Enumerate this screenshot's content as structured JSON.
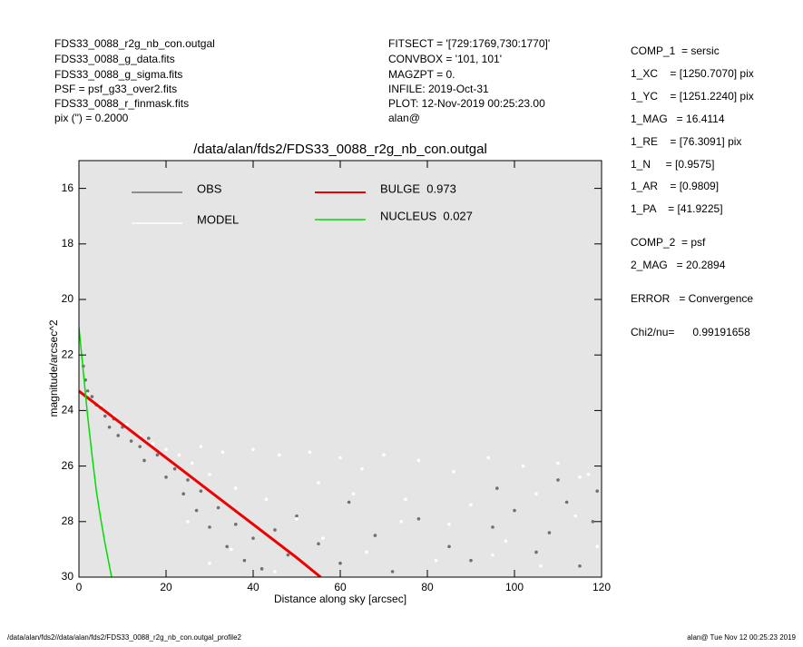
{
  "header": {
    "left": [
      "FDS33_0088_r2g_nb_con.outgal",
      "FDS33_0088_g_data.fits",
      "FDS33_0088_g_sigma.fits",
      "PSF     = psf_g33_over2.fits",
      "FDS33_0088_r_finmask.fits",
      "pix (\") =  0.2000"
    ],
    "middle": [
      "FITSECT = '[729:1769,730:1770]'",
      "CONVBOX = '101, 101'",
      "MAGZPT  =              0.",
      "INFILE: 2019-Oct-31",
      "PLOT: 12-Nov-2019 00:25:23.00",
      "alan@"
    ],
    "right": [
      "COMP_1  = sersic",
      "1_XC    = [1250.7070] pix",
      "1_YC    = [1251.2240] pix",
      "1_MAG   = 16.4114",
      "1_RE    = [76.3091] pix",
      "1_N     = [0.9575]",
      "1_AR    = [0.9809]",
      "1_PA    = [41.9225]",
      "COMP_2  = psf",
      "2_MAG   = 20.2894",
      "ERROR   = Convergence",
      "Chi2/nu=      0.99191658"
    ]
  },
  "footer": {
    "left": "/data/alan/fds2//data/alan/fds2/FDS33_0088_r2g_nb_con.outgal_profile2",
    "right": "alan@  Tue Nov 12 00:25:23 2019"
  },
  "chart_data": {
    "type": "scatter",
    "title": "/data/alan/fds2/FDS33_0088_r2g_nb_con.outgal",
    "x_label": "Distance along sky [arcsec]",
    "y_label": "magnitude/arcsec^2",
    "xlim": [
      0,
      120
    ],
    "xticks": [
      0,
      20,
      40,
      60,
      80,
      100,
      120
    ],
    "ylim": [
      30,
      15
    ],
    "yticks": [
      16,
      18,
      20,
      22,
      24,
      26,
      28,
      30
    ],
    "background": "#e5e5e5",
    "series": [
      {
        "name": "OBS",
        "style": "points",
        "color": "#707070",
        "x": [
          1,
          1.5,
          2,
          3,
          4,
          5,
          6,
          7,
          8,
          9,
          10,
          12,
          14,
          15,
          16,
          18,
          20,
          22,
          24,
          25,
          27,
          28,
          30,
          32,
          34,
          36,
          38,
          40,
          42,
          45,
          48,
          50,
          55,
          60,
          62,
          68,
          72,
          78,
          85,
          90,
          95,
          100,
          105,
          108,
          112,
          115,
          118,
          119,
          110,
          96
        ],
        "y": [
          22.4,
          22.9,
          23.3,
          23.5,
          23.8,
          23.9,
          24.2,
          24.6,
          24.3,
          24.9,
          24.6,
          25.1,
          25.3,
          25.8,
          25.0,
          25.6,
          26.4,
          26.1,
          27.0,
          26.5,
          27.6,
          26.9,
          28.2,
          27.5,
          28.9,
          28.1,
          29.4,
          28.6,
          29.7,
          28.3,
          29.2,
          27.8,
          28.8,
          29.5,
          27.3,
          28.5,
          29.8,
          27.9,
          28.9,
          29.4,
          28.2,
          27.6,
          29.1,
          28.4,
          27.3,
          29.6,
          28.0,
          26.9,
          26.5,
          26.8
        ]
      },
      {
        "name": "MODEL",
        "style": "points",
        "color": "#ffffff",
        "x": [
          2,
          5,
          8,
          11,
          14,
          17,
          20,
          23,
          26,
          28,
          30,
          33,
          36,
          40,
          43,
          46,
          50,
          53,
          56,
          60,
          63,
          66,
          70,
          74,
          78,
          82,
          86,
          90,
          94,
          98,
          102,
          106,
          110,
          114,
          117,
          119,
          25,
          30,
          35,
          45,
          55,
          65,
          75,
          85,
          95,
          105,
          115
        ],
        "y": [
          23.4,
          23.8,
          24.2,
          24.5,
          24.9,
          25.2,
          25.4,
          25.6,
          25.9,
          25.3,
          26.3,
          25.5,
          26.8,
          25.4,
          27.2,
          25.6,
          27.9,
          25.5,
          28.6,
          25.7,
          27.0,
          29.1,
          25.6,
          28.0,
          25.8,
          29.4,
          26.2,
          27.4,
          25.7,
          28.7,
          26.0,
          29.6,
          25.9,
          27.8,
          26.3,
          28.9,
          28.0,
          29.5,
          29.0,
          29.8,
          26.6,
          26.1,
          27.2,
          28.1,
          29.2,
          27.0,
          26.4
        ]
      },
      {
        "name": "BULGE  0.973",
        "style": "line",
        "color": "#ee0000",
        "x": [
          0,
          10,
          20,
          30,
          40,
          50,
          55.5
        ],
        "y": [
          23.3,
          24.5,
          25.7,
          26.9,
          28.1,
          29.3,
          30.0
        ]
      },
      {
        "name": "NUCLEUS  0.027",
        "style": "line",
        "color": "#00dd00",
        "x": [
          0,
          0.5,
          1,
          2,
          3,
          4,
          5,
          6,
          7,
          7.5
        ],
        "y": [
          21.0,
          21.8,
          22.6,
          24.2,
          25.6,
          26.9,
          27.9,
          28.8,
          29.6,
          30.0
        ]
      }
    ]
  }
}
